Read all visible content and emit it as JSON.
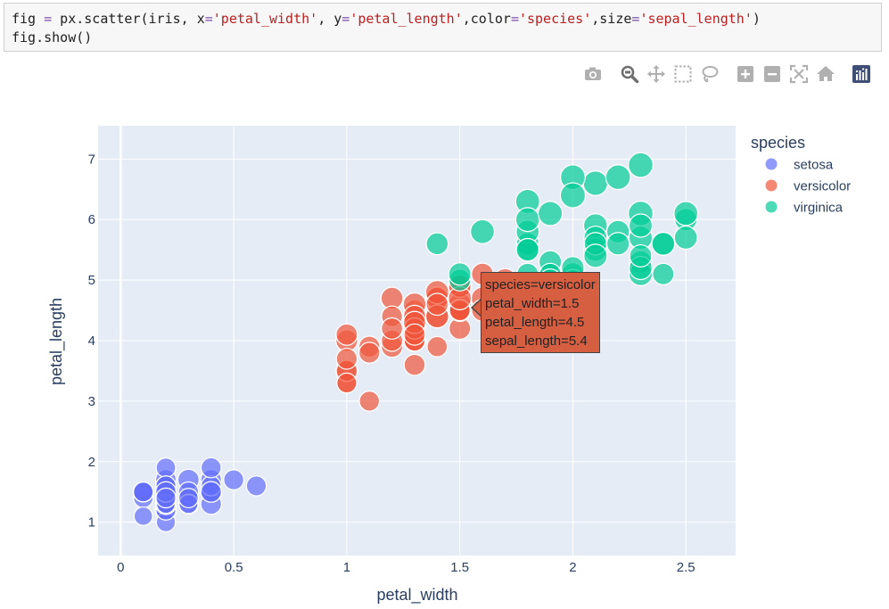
{
  "code_cell": {
    "line1": {
      "t1": "fig ",
      "t2": "=",
      "t3": " px.scatter(iris, x",
      "t4": "=",
      "t5": "'petal_width'",
      "t6": ", y",
      "t7": "=",
      "t8": "'petal_length'",
      "t9": ",color",
      "t10": "=",
      "t11": "'species'",
      "t12": ",size",
      "t13": "=",
      "t14": "'sepal_length'",
      "t15": ")"
    },
    "line2": "fig.show()"
  },
  "toolbar": {
    "icons": [
      "camera-icon",
      "zoom-icon",
      "pan-icon",
      "box-select-icon",
      "lasso-select-icon",
      "zoom-in-icon",
      "zoom-out-icon",
      "autoscale-icon",
      "reset-axes-icon",
      "plotly-logo-icon"
    ]
  },
  "tooltip": {
    "line1": "species=versicolor",
    "line2": "petal_width=1.5",
    "line3": "petal_length=4.5",
    "line4": "sepal_length=5.4"
  },
  "chart_data": {
    "type": "scatter",
    "title": "",
    "xlabel": "petal_width",
    "ylabel": "petal_length",
    "xlim": [
      -0.1,
      2.72
    ],
    "ylim": [
      0.45,
      7.55
    ],
    "xticks": [
      0,
      0.5,
      1,
      1.5,
      2,
      2.5
    ],
    "yticks": [
      1,
      2,
      3,
      4,
      5,
      6,
      7
    ],
    "grid": true,
    "background": "#e5ecf6",
    "size_variable": "sepal_length",
    "legend": {
      "title": "species",
      "placement": "right"
    },
    "series": [
      {
        "name": "setosa",
        "color": "#636efa",
        "points": [
          [
            0.2,
            1.4,
            5.1
          ],
          [
            0.2,
            1.4,
            4.9
          ],
          [
            0.2,
            1.3,
            4.7
          ],
          [
            0.2,
            1.5,
            4.6
          ],
          [
            0.2,
            1.4,
            5.0
          ],
          [
            0.4,
            1.7,
            5.4
          ],
          [
            0.3,
            1.4,
            4.6
          ],
          [
            0.2,
            1.5,
            5.0
          ],
          [
            0.2,
            1.4,
            4.4
          ],
          [
            0.1,
            1.5,
            4.9
          ],
          [
            0.2,
            1.5,
            5.4
          ],
          [
            0.2,
            1.6,
            4.8
          ],
          [
            0.1,
            1.4,
            4.8
          ],
          [
            0.1,
            1.1,
            4.3
          ],
          [
            0.2,
            1.2,
            5.8
          ],
          [
            0.4,
            1.5,
            5.7
          ],
          [
            0.4,
            1.3,
            5.4
          ],
          [
            0.3,
            1.4,
            5.1
          ],
          [
            0.3,
            1.7,
            5.7
          ],
          [
            0.3,
            1.5,
            5.1
          ],
          [
            0.2,
            1.7,
            5.4
          ],
          [
            0.4,
            1.5,
            5.1
          ],
          [
            0.2,
            1.0,
            4.6
          ],
          [
            0.5,
            1.7,
            5.1
          ],
          [
            0.2,
            1.9,
            4.8
          ],
          [
            0.2,
            1.6,
            5.0
          ],
          [
            0.4,
            1.6,
            5.0
          ],
          [
            0.2,
            1.5,
            5.2
          ],
          [
            0.2,
            1.4,
            5.2
          ],
          [
            0.2,
            1.6,
            4.7
          ],
          [
            0.2,
            1.6,
            4.8
          ],
          [
            0.4,
            1.5,
            5.4
          ],
          [
            0.1,
            1.5,
            5.2
          ],
          [
            0.2,
            1.4,
            5.5
          ],
          [
            0.1,
            1.5,
            4.9
          ],
          [
            0.2,
            1.2,
            5.0
          ],
          [
            0.2,
            1.3,
            5.5
          ],
          [
            0.1,
            1.5,
            4.9
          ],
          [
            0.2,
            1.3,
            4.4
          ],
          [
            0.2,
            1.5,
            5.1
          ],
          [
            0.3,
            1.3,
            5.0
          ],
          [
            0.3,
            1.3,
            4.5
          ],
          [
            0.2,
            1.3,
            4.4
          ],
          [
            0.6,
            1.6,
            5.0
          ],
          [
            0.4,
            1.9,
            5.1
          ],
          [
            0.3,
            1.4,
            4.8
          ],
          [
            0.2,
            1.6,
            5.1
          ],
          [
            0.2,
            1.4,
            4.6
          ],
          [
            0.2,
            1.5,
            5.3
          ],
          [
            0.2,
            1.4,
            5.0
          ]
        ]
      },
      {
        "name": "versicolor",
        "color": "#ef553b",
        "points": [
          [
            1.4,
            4.7,
            7.0
          ],
          [
            1.5,
            4.5,
            6.4
          ],
          [
            1.5,
            4.9,
            6.9
          ],
          [
            1.3,
            4.0,
            5.5
          ],
          [
            1.5,
            4.6,
            6.5
          ],
          [
            1.3,
            4.5,
            5.7
          ],
          [
            1.6,
            4.7,
            6.3
          ],
          [
            1.0,
            3.3,
            4.9
          ],
          [
            1.3,
            4.6,
            6.6
          ],
          [
            1.4,
            3.9,
            5.2
          ],
          [
            1.0,
            3.5,
            5.0
          ],
          [
            1.5,
            4.2,
            5.9
          ],
          [
            1.0,
            4.0,
            6.0
          ],
          [
            1.4,
            4.7,
            6.1
          ],
          [
            1.3,
            3.6,
            5.6
          ],
          [
            1.4,
            4.4,
            6.7
          ],
          [
            1.5,
            4.5,
            5.6
          ],
          [
            1.0,
            4.1,
            5.8
          ],
          [
            1.5,
            4.5,
            6.2
          ],
          [
            1.1,
            3.9,
            5.6
          ],
          [
            1.8,
            4.8,
            5.9
          ],
          [
            1.3,
            4.0,
            6.1
          ],
          [
            1.5,
            4.9,
            6.3
          ],
          [
            1.2,
            4.7,
            6.1
          ],
          [
            1.3,
            4.3,
            6.4
          ],
          [
            1.4,
            4.4,
            6.6
          ],
          [
            1.4,
            4.8,
            6.8
          ],
          [
            1.7,
            5.0,
            6.7
          ],
          [
            1.5,
            4.5,
            6.0
          ],
          [
            1.0,
            3.5,
            5.7
          ],
          [
            1.1,
            3.8,
            5.5
          ],
          [
            1.0,
            3.7,
            5.5
          ],
          [
            1.2,
            3.9,
            5.8
          ],
          [
            1.6,
            5.1,
            6.0
          ],
          [
            1.5,
            4.5,
            5.4
          ],
          [
            1.6,
            4.5,
            6.0
          ],
          [
            1.5,
            4.7,
            6.7
          ],
          [
            1.3,
            4.4,
            6.3
          ],
          [
            1.3,
            4.1,
            5.6
          ],
          [
            1.3,
            4.0,
            5.5
          ],
          [
            1.2,
            4.4,
            5.5
          ],
          [
            1.4,
            4.6,
            6.1
          ],
          [
            1.2,
            4.0,
            5.8
          ],
          [
            1.0,
            3.3,
            5.0
          ],
          [
            1.3,
            4.2,
            5.6
          ],
          [
            1.2,
            4.2,
            5.7
          ],
          [
            1.3,
            4.2,
            5.7
          ],
          [
            1.3,
            4.3,
            6.2
          ],
          [
            1.1,
            3.0,
            5.1
          ],
          [
            1.3,
            4.1,
            5.7
          ]
        ]
      },
      {
        "name": "virginica",
        "color": "#00cc96",
        "points": [
          [
            2.5,
            6.0,
            6.3
          ],
          [
            1.9,
            5.1,
            5.8
          ],
          [
            2.1,
            5.9,
            7.1
          ],
          [
            1.8,
            5.6,
            6.3
          ],
          [
            2.2,
            5.8,
            6.5
          ],
          [
            2.1,
            6.6,
            7.6
          ],
          [
            1.7,
            4.5,
            4.9
          ],
          [
            1.8,
            6.3,
            7.3
          ],
          [
            1.8,
            5.8,
            6.7
          ],
          [
            2.5,
            6.1,
            7.2
          ],
          [
            2.0,
            5.1,
            6.5
          ],
          [
            1.9,
            5.3,
            6.4
          ],
          [
            2.1,
            5.5,
            6.8
          ],
          [
            2.0,
            5.0,
            5.7
          ],
          [
            2.4,
            5.1,
            5.8
          ],
          [
            2.3,
            5.3,
            6.4
          ],
          [
            1.8,
            5.5,
            6.5
          ],
          [
            2.2,
            6.7,
            7.7
          ],
          [
            2.3,
            6.9,
            7.7
          ],
          [
            1.5,
            5.0,
            6.0
          ],
          [
            2.3,
            5.7,
            6.9
          ],
          [
            2.0,
            4.9,
            5.6
          ],
          [
            2.0,
            6.7,
            7.7
          ],
          [
            1.8,
            4.9,
            6.3
          ],
          [
            2.1,
            5.7,
            6.7
          ],
          [
            1.8,
            6.0,
            7.2
          ],
          [
            1.8,
            4.8,
            6.2
          ],
          [
            1.8,
            4.9,
            6.1
          ],
          [
            2.1,
            5.6,
            6.4
          ],
          [
            1.6,
            5.8,
            7.2
          ],
          [
            1.9,
            6.1,
            7.4
          ],
          [
            2.0,
            6.4,
            7.9
          ],
          [
            2.2,
            5.6,
            6.4
          ],
          [
            1.5,
            5.1,
            6.3
          ],
          [
            1.4,
            5.6,
            6.1
          ],
          [
            2.3,
            6.1,
            7.7
          ],
          [
            2.4,
            5.6,
            6.3
          ],
          [
            1.8,
            5.5,
            6.4
          ],
          [
            1.8,
            4.8,
            6.0
          ],
          [
            2.1,
            5.4,
            6.9
          ],
          [
            2.4,
            5.6,
            6.7
          ],
          [
            2.3,
            5.1,
            6.9
          ],
          [
            1.9,
            5.1,
            5.8
          ],
          [
            2.3,
            5.9,
            6.8
          ],
          [
            2.5,
            5.7,
            6.7
          ],
          [
            2.3,
            5.2,
            6.7
          ],
          [
            1.9,
            5.0,
            6.3
          ],
          [
            2.0,
            5.2,
            6.5
          ],
          [
            2.3,
            5.4,
            6.2
          ],
          [
            1.8,
            5.1,
            5.9
          ]
        ]
      }
    ]
  }
}
